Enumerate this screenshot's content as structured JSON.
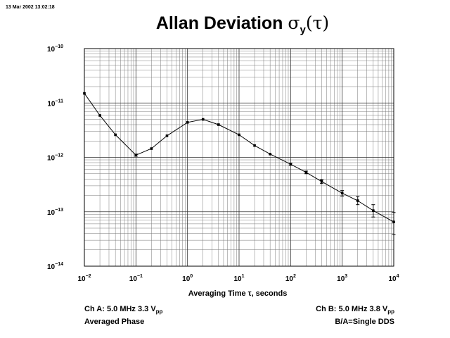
{
  "timestamp": "13 Mar 2002 13:02:18",
  "title": {
    "text": "Allan Deviation ",
    "symbol": "σ",
    "subscript": "y",
    "arg": "(τ)"
  },
  "footer": {
    "left_line1_prefix": "Ch A: 5.0 MHz 3.3 V",
    "left_line1_sub": "pp",
    "left_line2": "Averaged Phase",
    "right_line1_prefix": "Ch B: 5.0 MHz 3.8 V",
    "right_line1_sub": "pp",
    "right_line2": "B/A=Single DDS"
  },
  "chart_data": {
    "type": "line",
    "title": "Allan Deviation σy(τ)",
    "xlabel": "Averaging Time τ, seconds",
    "ylabel": "",
    "x_scale": "log",
    "y_scale": "log",
    "xlim": [
      0.01,
      10000
    ],
    "ylim": [
      1e-14,
      1e-10
    ],
    "x_tick_labels": [
      {
        "base": "10",
        "exp": "−2",
        "value": 0.01
      },
      {
        "base": "10",
        "exp": "−1",
        "value": 0.1
      },
      {
        "base": "10",
        "exp": "0",
        "value": 1
      },
      {
        "base": "10",
        "exp": "1",
        "value": 10
      },
      {
        "base": "10",
        "exp": "2",
        "value": 100
      },
      {
        "base": "10",
        "exp": "3",
        "value": 1000
      },
      {
        "base": "10",
        "exp": "4",
        "value": 10000
      }
    ],
    "y_tick_labels": [
      {
        "base": "10",
        "exp": "−10",
        "value": 1e-10
      },
      {
        "base": "10",
        "exp": "−11",
        "value": 1e-11
      },
      {
        "base": "10",
        "exp": "−12",
        "value": 1e-12
      },
      {
        "base": "10",
        "exp": "−13",
        "value": 1e-13
      },
      {
        "base": "10",
        "exp": "−14",
        "value": 1e-14
      }
    ],
    "grid": true,
    "series": [
      {
        "x": [
          0.01,
          0.02,
          0.04,
          0.1,
          0.2,
          0.4,
          1,
          2,
          4,
          10,
          20,
          40,
          100,
          200,
          400,
          1000,
          2000,
          4000,
          10000
        ],
        "y": [
          1.5e-11,
          5.9e-12,
          2.6e-12,
          1.1e-12,
          1.45e-12,
          2.5e-12,
          4.4e-12,
          5e-12,
          4e-12,
          2.6e-12,
          1.65e-12,
          1.15e-12,
          7.5e-13,
          5.3e-13,
          3.6e-13,
          2.2e-13,
          1.6e-13,
          1.05e-13,
          6.5e-14
        ],
        "yerr_low": [
          1.5e-11,
          5.9e-12,
          2.6e-12,
          1.05e-12,
          1.45e-12,
          2.45e-12,
          4.35e-12,
          4.9e-12,
          3.95e-12,
          2.55e-12,
          1.62e-12,
          1.12e-12,
          7.2e-13,
          5e-13,
          3.3e-13,
          1.95e-13,
          1.35e-13,
          8e-14,
          3.8e-14
        ],
        "yerr_high": [
          1.5e-11,
          5.9e-12,
          2.6e-12,
          1.15e-12,
          1.45e-12,
          2.55e-12,
          4.45e-12,
          5.1e-12,
          4.05e-12,
          2.65e-12,
          1.68e-12,
          1.18e-12,
          7.8e-13,
          5.6e-13,
          3.9e-13,
          2.45e-13,
          1.9e-13,
          1.35e-13,
          9.7e-14
        ]
      }
    ]
  }
}
